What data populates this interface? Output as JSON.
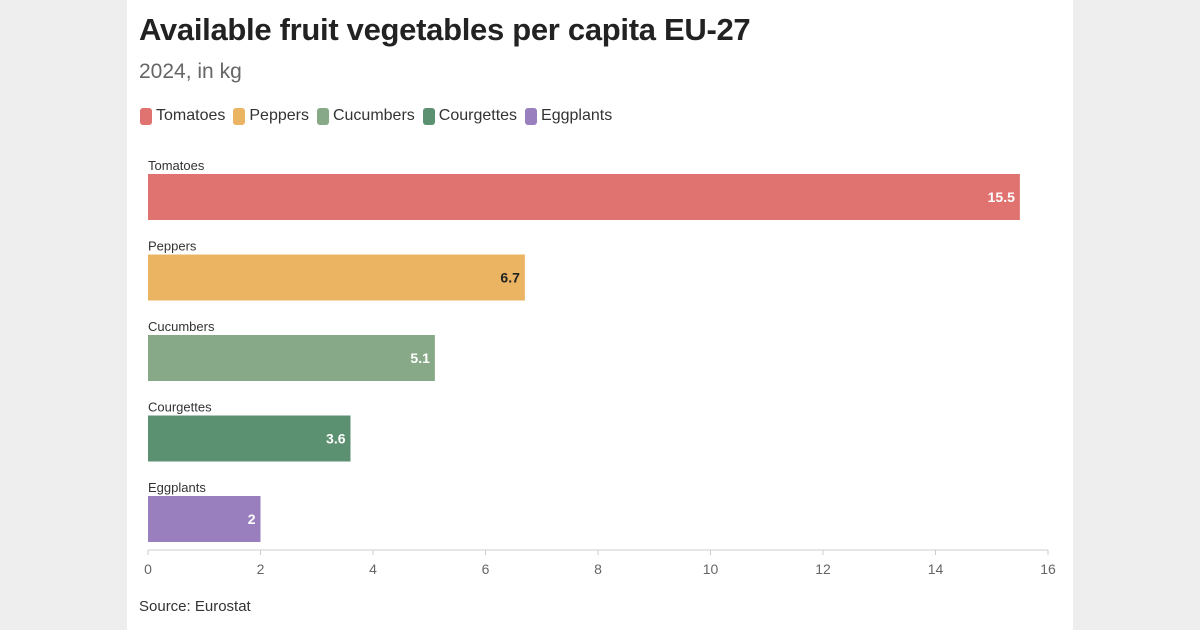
{
  "title": "Available fruit vegetables per capita EU-27",
  "subtitle": "2024, in kg",
  "source": "Source: Eurostat",
  "legend": [
    {
      "label": "Tomatoes",
      "color": "#e07370"
    },
    {
      "label": "Peppers",
      "color": "#ebb462"
    },
    {
      "label": "Cucumbers",
      "color": "#87a988"
    },
    {
      "label": "Courgettes",
      "color": "#5b9070"
    },
    {
      "label": "Eggplants",
      "color": "#9a7fbe"
    }
  ],
  "chart_data": {
    "type": "bar",
    "orientation": "horizontal",
    "categories": [
      "Tomatoes",
      "Peppers",
      "Cucumbers",
      "Courgettes",
      "Eggplants"
    ],
    "values": [
      15.5,
      6.7,
      5.1,
      3.6,
      2
    ],
    "value_labels": [
      "15.5",
      "6.7",
      "5.1",
      "3.6",
      "2"
    ],
    "colors": [
      "#e07370",
      "#ebb462",
      "#87a988",
      "#5b9070",
      "#9a7fbe"
    ],
    "label_colors": [
      "#ffffff",
      "#222222",
      "#ffffff",
      "#ffffff",
      "#ffffff"
    ],
    "xlim": [
      0,
      16
    ],
    "xticks": [
      0,
      2,
      4,
      6,
      8,
      10,
      12,
      14,
      16
    ],
    "title": "Available fruit vegetables per capita EU-27",
    "subtitle": "2024, in kg",
    "xlabel": "",
    "ylabel": "",
    "grid": false,
    "legend_position": "top-left"
  }
}
